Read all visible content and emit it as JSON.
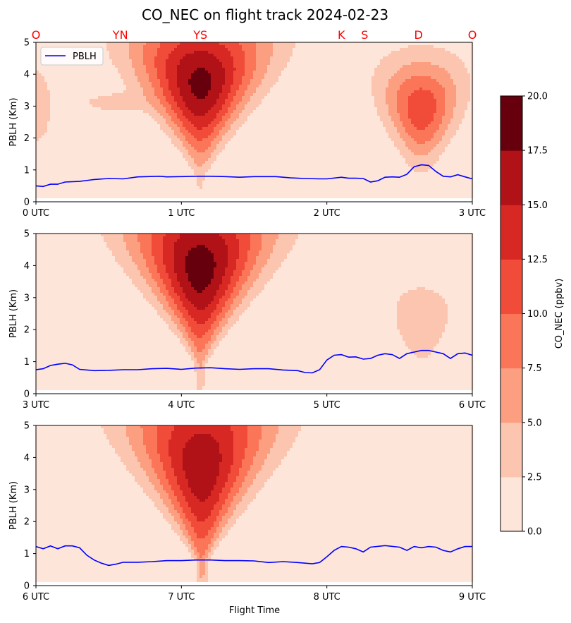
{
  "chart_data": {
    "type": "contour",
    "title": "CO_NEC on flight track 2024-02-23",
    "xlabel": "Flight Time",
    "ylabel": "PBLH (Km)",
    "ylim": [
      0,
      5
    ],
    "yticks": [
      "0",
      "1",
      "2",
      "3",
      "4",
      "5"
    ],
    "legend": {
      "label": "PBLH",
      "placement": "upper-left",
      "color": "#0000ff"
    },
    "site_labels": [
      {
        "label": "O",
        "hour": 0.0
      },
      {
        "label": "YN",
        "hour": 0.58
      },
      {
        "label": "YS",
        "hour": 1.13
      },
      {
        "label": "K",
        "hour": 2.1
      },
      {
        "label": "S",
        "hour": 2.26
      },
      {
        "label": "D",
        "hour": 2.63
      },
      {
        "label": "O",
        "hour": 3.0
      }
    ],
    "site_label_color": "#ff0000",
    "colorbar": {
      "label": "CO_NEC (ppbv)",
      "ticks": [
        "0.0",
        "2.5",
        "5.0",
        "7.5",
        "10.0",
        "12.5",
        "15.0",
        "17.5",
        "20.0"
      ],
      "levels": [
        0,
        2.5,
        5,
        7.5,
        10,
        12.5,
        15,
        17.5,
        20
      ],
      "colors": [
        "#fee5d9",
        "#fcc5b0",
        "#fc9f80",
        "#fb7558",
        "#f14b3a",
        "#d72823",
        "#b11218",
        "#67000d"
      ]
    },
    "panels": [
      {
        "x_range": [
          0,
          3
        ],
        "xticks": [
          "0 UTC",
          "1 UTC",
          "2 UTC",
          "3 UTC"
        ],
        "pblh": [
          [
            0,
            0.5
          ],
          [
            0.05,
            0.48
          ],
          [
            0.1,
            0.55
          ],
          [
            0.15,
            0.55
          ],
          [
            0.2,
            0.62
          ],
          [
            0.3,
            0.64
          ],
          [
            0.4,
            0.7
          ],
          [
            0.5,
            0.73
          ],
          [
            0.6,
            0.72
          ],
          [
            0.7,
            0.78
          ],
          [
            0.85,
            0.8
          ],
          [
            0.9,
            0.78
          ],
          [
            1.0,
            0.79
          ],
          [
            1.1,
            0.8
          ],
          [
            1.2,
            0.8
          ],
          [
            1.3,
            0.79
          ],
          [
            1.4,
            0.77
          ],
          [
            1.5,
            0.79
          ],
          [
            1.65,
            0.79
          ],
          [
            1.75,
            0.75
          ],
          [
            1.85,
            0.73
          ],
          [
            1.95,
            0.72
          ],
          [
            2.0,
            0.72
          ],
          [
            2.1,
            0.77
          ],
          [
            2.15,
            0.74
          ],
          [
            2.2,
            0.74
          ],
          [
            2.25,
            0.73
          ],
          [
            2.3,
            0.62
          ],
          [
            2.35,
            0.66
          ],
          [
            2.4,
            0.77
          ],
          [
            2.45,
            0.78
          ],
          [
            2.5,
            0.77
          ],
          [
            2.55,
            0.86
          ],
          [
            2.6,
            1.1
          ],
          [
            2.65,
            1.16
          ],
          [
            2.7,
            1.14
          ],
          [
            2.75,
            0.95
          ],
          [
            2.8,
            0.8
          ],
          [
            2.85,
            0.78
          ],
          [
            2.9,
            0.85
          ],
          [
            2.95,
            0.78
          ],
          [
            3.0,
            0.72
          ]
        ],
        "sources": [
          {
            "x": 0.0,
            "y": 3.0,
            "peak": 4.0,
            "sx": 0.09,
            "sy": 1.0,
            "bias": 0
          },
          {
            "x": 0.5,
            "y": 3.1,
            "peak": 3.0,
            "sx": 0.17,
            "sy": 0.25,
            "bias": 0
          },
          {
            "x": 1.13,
            "y": 3.7,
            "peak": 18.0,
            "sx": 0.25,
            "sy": 1.6,
            "bias": 0.3
          },
          {
            "x": 2.65,
            "y": 2.9,
            "peak": 11.5,
            "sx": 0.17,
            "sy": 1.1,
            "bias": 0.25
          }
        ]
      },
      {
        "x_range": [
          3,
          6
        ],
        "xticks": [
          "3 UTC",
          "4 UTC",
          "5 UTC",
          "6 UTC"
        ],
        "pblh": [
          [
            3.0,
            0.75
          ],
          [
            3.05,
            0.78
          ],
          [
            3.1,
            0.88
          ],
          [
            3.15,
            0.92
          ],
          [
            3.2,
            0.95
          ],
          [
            3.25,
            0.9
          ],
          [
            3.3,
            0.76
          ],
          [
            3.4,
            0.72
          ],
          [
            3.5,
            0.73
          ],
          [
            3.6,
            0.75
          ],
          [
            3.7,
            0.75
          ],
          [
            3.8,
            0.78
          ],
          [
            3.9,
            0.79
          ],
          [
            4.0,
            0.76
          ],
          [
            4.1,
            0.8
          ],
          [
            4.2,
            0.81
          ],
          [
            4.3,
            0.78
          ],
          [
            4.4,
            0.76
          ],
          [
            4.5,
            0.78
          ],
          [
            4.6,
            0.78
          ],
          [
            4.7,
            0.74
          ],
          [
            4.8,
            0.72
          ],
          [
            4.85,
            0.66
          ],
          [
            4.9,
            0.65
          ],
          [
            4.95,
            0.75
          ],
          [
            5.0,
            1.05
          ],
          [
            5.05,
            1.2
          ],
          [
            5.1,
            1.22
          ],
          [
            5.15,
            1.14
          ],
          [
            5.2,
            1.15
          ],
          [
            5.25,
            1.08
          ],
          [
            5.3,
            1.1
          ],
          [
            5.35,
            1.2
          ],
          [
            5.4,
            1.25
          ],
          [
            5.45,
            1.22
          ],
          [
            5.5,
            1.1
          ],
          [
            5.55,
            1.25
          ],
          [
            5.6,
            1.3
          ],
          [
            5.65,
            1.35
          ],
          [
            5.7,
            1.35
          ],
          [
            5.75,
            1.3
          ],
          [
            5.8,
            1.25
          ],
          [
            5.85,
            1.1
          ],
          [
            5.9,
            1.25
          ],
          [
            5.95,
            1.27
          ],
          [
            6.0,
            1.2
          ]
        ],
        "sources": [
          {
            "x": 4.13,
            "y": 3.9,
            "peak": 18.5,
            "sx": 0.26,
            "sy": 1.9,
            "bias": 0.3
          },
          {
            "x": 5.65,
            "y": 2.2,
            "peak": 4.6,
            "sx": 0.14,
            "sy": 0.9,
            "bias": 0.3
          }
        ]
      },
      {
        "x_range": [
          6,
          9
        ],
        "xticks": [
          "6 UTC",
          "7 UTC",
          "8 UTC",
          "9 UTC"
        ],
        "pblh": [
          [
            6.0,
            1.22
          ],
          [
            6.05,
            1.15
          ],
          [
            6.1,
            1.24
          ],
          [
            6.15,
            1.15
          ],
          [
            6.2,
            1.24
          ],
          [
            6.25,
            1.24
          ],
          [
            6.3,
            1.18
          ],
          [
            6.35,
            0.95
          ],
          [
            6.4,
            0.8
          ],
          [
            6.45,
            0.7
          ],
          [
            6.5,
            0.63
          ],
          [
            6.55,
            0.67
          ],
          [
            6.6,
            0.73
          ],
          [
            6.7,
            0.73
          ],
          [
            6.8,
            0.75
          ],
          [
            6.9,
            0.78
          ],
          [
            7.0,
            0.78
          ],
          [
            7.1,
            0.8
          ],
          [
            7.2,
            0.8
          ],
          [
            7.3,
            0.78
          ],
          [
            7.4,
            0.78
          ],
          [
            7.5,
            0.77
          ],
          [
            7.6,
            0.72
          ],
          [
            7.7,
            0.75
          ],
          [
            7.8,
            0.72
          ],
          [
            7.9,
            0.68
          ],
          [
            7.95,
            0.72
          ],
          [
            8.0,
            0.9
          ],
          [
            8.05,
            1.1
          ],
          [
            8.1,
            1.22
          ],
          [
            8.15,
            1.2
          ],
          [
            8.2,
            1.15
          ],
          [
            8.25,
            1.05
          ],
          [
            8.3,
            1.2
          ],
          [
            8.4,
            1.25
          ],
          [
            8.5,
            1.2
          ],
          [
            8.55,
            1.1
          ],
          [
            8.6,
            1.22
          ],
          [
            8.65,
            1.18
          ],
          [
            8.7,
            1.22
          ],
          [
            8.75,
            1.2
          ],
          [
            8.8,
            1.1
          ],
          [
            8.85,
            1.05
          ],
          [
            8.9,
            1.15
          ],
          [
            8.95,
            1.22
          ],
          [
            9.0,
            1.22
          ]
        ],
        "sources": [
          {
            "x": 7.14,
            "y": 3.7,
            "peak": 16.5,
            "sx": 0.26,
            "sy": 2.2,
            "bias": 0.3
          }
        ]
      }
    ]
  }
}
